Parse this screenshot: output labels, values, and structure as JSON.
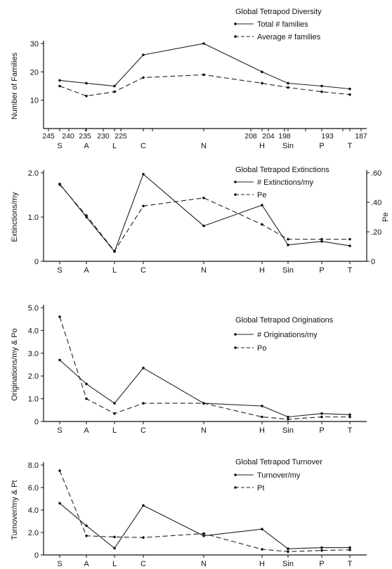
{
  "charts": [
    {
      "type": "line",
      "title": "Global Tetrapod Diversity",
      "ylabel": "Number of Families",
      "ylim": [
        0,
        30
      ],
      "yticks": [
        "10",
        "20",
        "30"
      ],
      "ytick_values": [
        10,
        20,
        30
      ],
      "top_axis_ticks": [
        "245",
        "240",
        "235",
        "230",
        "225",
        "208",
        "204",
        "198",
        "193",
        "187"
      ],
      "categories": [
        "S",
        "A",
        "L",
        "C",
        "N",
        "H",
        "Sin",
        "P",
        "T"
      ],
      "series": [
        {
          "name": "Total # families",
          "style": "solid",
          "axis": "left",
          "values": [
            17,
            16,
            15,
            26,
            30,
            20,
            16,
            15,
            14
          ]
        },
        {
          "name": "Average # families",
          "style": "dashed",
          "axis": "left",
          "values": [
            15,
            11.5,
            13,
            18,
            19,
            16,
            14.5,
            13,
            12
          ]
        }
      ]
    },
    {
      "type": "line",
      "title": "Global Tetrapod Extinctions",
      "ylabel": "Extinctions/my",
      "ylim": [
        0,
        2.0
      ],
      "yticks": [
        "0",
        "1.0",
        "2.0"
      ],
      "ytick_values": [
        0,
        1.0,
        2.0
      ],
      "y2label": "Pe",
      "y2lim": [
        0,
        0.6
      ],
      "y2ticks": [
        "0",
        ".20",
        ".40",
        ".60"
      ],
      "y2tick_values": [
        0,
        0.2,
        0.4,
        0.6
      ],
      "categories": [
        "S",
        "A",
        "L",
        "C",
        "N",
        "H",
        "Sin",
        "P",
        "T"
      ],
      "series": [
        {
          "name": "# Extinctions/my",
          "style": "solid",
          "axis": "left",
          "values": [
            1.75,
            1.0,
            0.22,
            1.97,
            0.8,
            1.27,
            0.37,
            0.45,
            0.35
          ]
        },
        {
          "name": "Pe",
          "style": "dashed",
          "axis": "right",
          "values": [
            0.52,
            0.31,
            0.07,
            0.375,
            0.43,
            0.25,
            0.15,
            0.15,
            0.15
          ]
        }
      ]
    },
    {
      "type": "line",
      "title": "Global Tetrapod Originations",
      "ylabel": "Originations/my & Po",
      "ylim": [
        0,
        5.0
      ],
      "yticks": [
        "0",
        "1.0",
        "2.0",
        "3.0",
        "4.0",
        "5.0"
      ],
      "ytick_values": [
        0,
        1.0,
        2.0,
        3.0,
        4.0,
        5.0
      ],
      "categories": [
        "S",
        "A",
        "L",
        "C",
        "N",
        "H",
        "Sin",
        "P",
        "T"
      ],
      "series": [
        {
          "name": "# Originations/my",
          "style": "solid",
          "axis": "left",
          "values": [
            2.7,
            1.65,
            0.8,
            2.35,
            0.8,
            0.68,
            0.2,
            0.35,
            0.3
          ]
        },
        {
          "name": "Po",
          "style": "dashed",
          "axis": "left",
          "values": [
            4.6,
            1.0,
            0.35,
            0.8,
            0.8,
            0.2,
            0.1,
            0.2,
            0.2
          ]
        }
      ]
    },
    {
      "type": "line",
      "title": "Global Tetrapod Turnover",
      "ylabel": "Turnover/my & Pt",
      "ylim": [
        0,
        8.0
      ],
      "yticks": [
        "0",
        "2.0",
        "4.0",
        "6.0",
        "8.0"
      ],
      "ytick_values": [
        0,
        2.0,
        4.0,
        6.0,
        8.0
      ],
      "categories": [
        "S",
        "A",
        "L",
        "C",
        "N",
        "H",
        "Sin",
        "P",
        "T"
      ],
      "series": [
        {
          "name": "Turnover/my",
          "style": "solid",
          "axis": "left",
          "values": [
            4.6,
            2.6,
            0.6,
            4.4,
            1.7,
            2.3,
            0.55,
            0.65,
            0.65
          ]
        },
        {
          "name": "Pt",
          "style": "dashed",
          "axis": "left",
          "values": [
            7.5,
            1.7,
            1.6,
            1.55,
            1.9,
            0.5,
            0.3,
            0.4,
            0.45
          ]
        }
      ]
    }
  ]
}
